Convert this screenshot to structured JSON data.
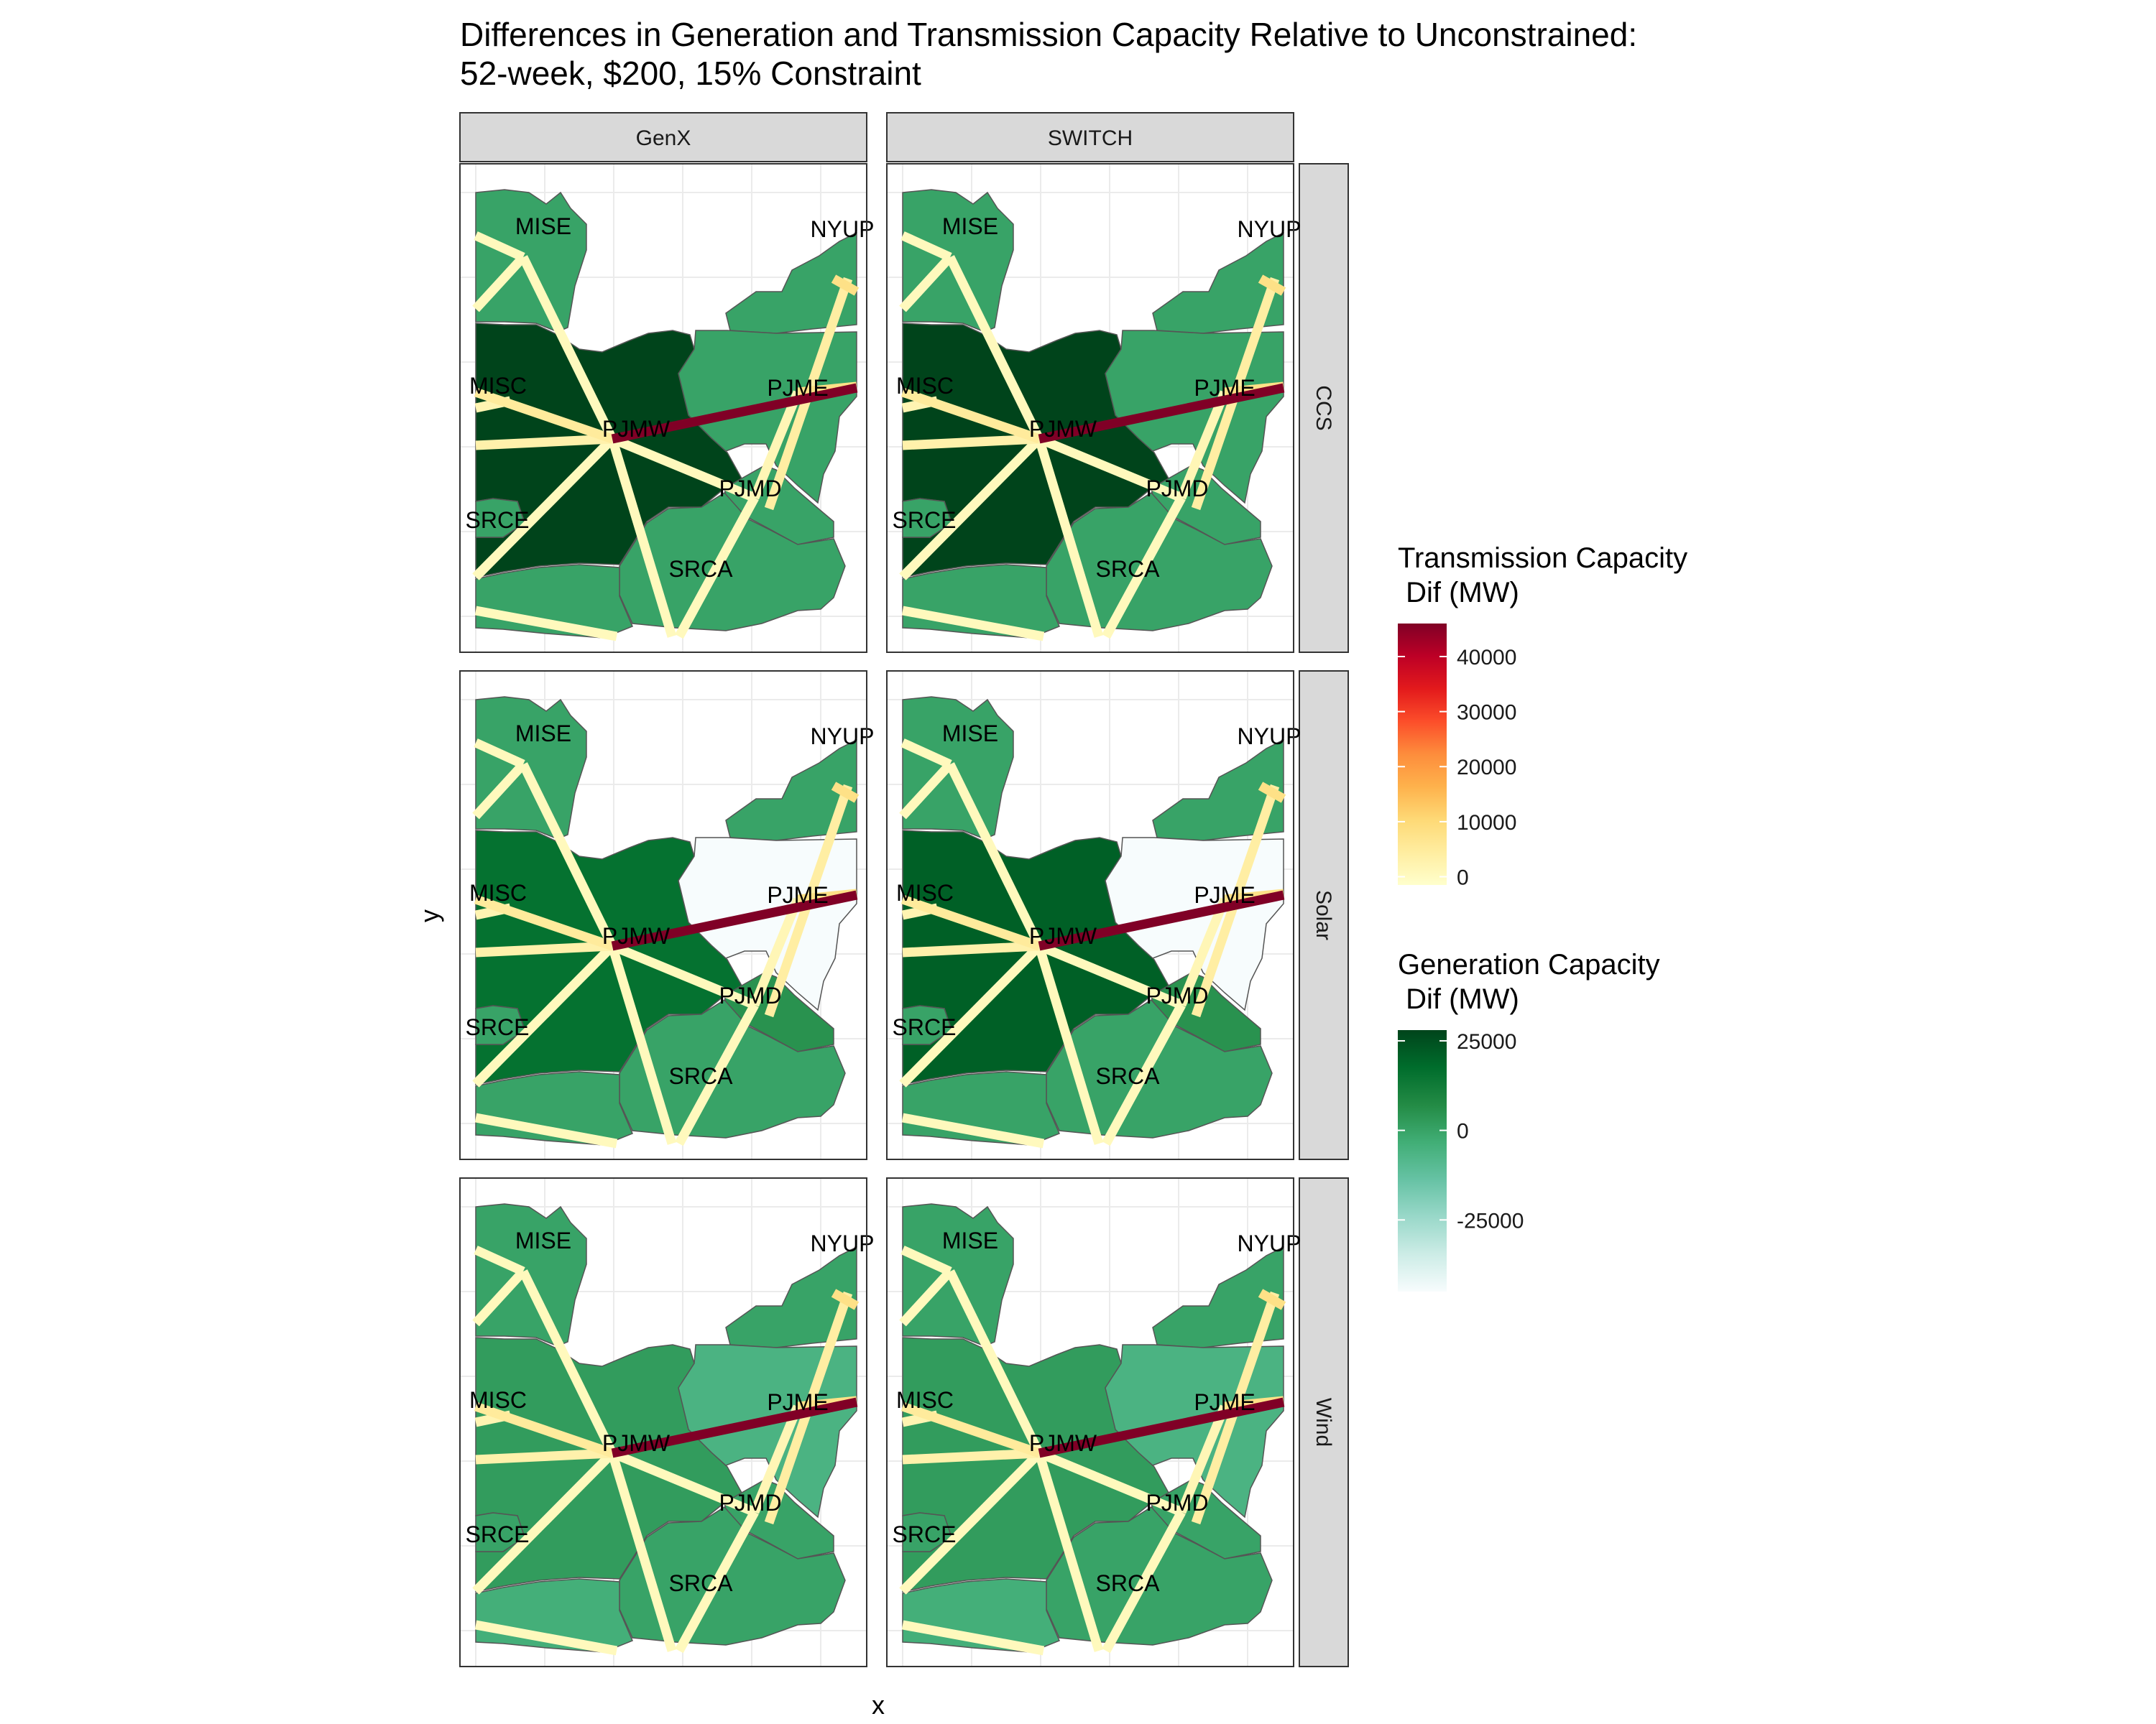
{
  "title_line1": "Differences in Generation and Transmission Capacity Relative to Unconstrained:",
  "title_line2": "52-week, $200, 15% Constraint",
  "x_label": "x",
  "y_label": "y",
  "columns": [
    "GenX",
    "SWITCH"
  ],
  "rows": [
    "CCS",
    "Solar",
    "Wind"
  ],
  "nodes": [
    {
      "id": "MISE",
      "label": "MISE"
    },
    {
      "id": "NYUP",
      "label": "NYUP"
    },
    {
      "id": "MISC",
      "label": "MISC"
    },
    {
      "id": "PJMW",
      "label": "PJMW"
    },
    {
      "id": "PJME",
      "label": "PJME"
    },
    {
      "id": "SRCE",
      "label": "SRCE"
    },
    {
      "id": "PJMD",
      "label": "PJMD"
    },
    {
      "id": "SRCA",
      "label": "SRCA"
    }
  ],
  "transmission": [
    {
      "from": "PJMW",
      "to": "PJME",
      "dif_mw": 46000
    },
    {
      "from": "PJMW",
      "to": "MISC",
      "dif_mw": 5000
    },
    {
      "from": "PJMW",
      "to": "MISE",
      "dif_mw": 500
    },
    {
      "from": "PJMW",
      "to": "SRCE",
      "dif_mw": 500
    },
    {
      "from": "PJMW",
      "to": "SRCA",
      "dif_mw": 500
    },
    {
      "from": "PJMW",
      "to": "PJMD",
      "dif_mw": 500
    },
    {
      "from": "PJMW",
      "to": "west-edge",
      "dif_mw": 3000
    },
    {
      "from": "PJME",
      "to": "NYUP",
      "dif_mw": 4000
    },
    {
      "from": "PJME",
      "to": "PJMD",
      "dif_mw": 1500
    },
    {
      "from": "PJME",
      "to": "east-edge",
      "dif_mw": 8000
    },
    {
      "from": "NYUP",
      "to": "east-edge",
      "dif_mw": 8000
    },
    {
      "from": "MISE",
      "to": "west-edge-upper",
      "dif_mw": 500
    },
    {
      "from": "MISE",
      "to": "west-edge-top",
      "dif_mw": 500
    },
    {
      "from": "PJMD",
      "to": "SRCA",
      "dif_mw": 500
    },
    {
      "from": "SRCA",
      "to": "south-edge",
      "dif_mw": 500
    },
    {
      "from": "SRCE",
      "to": "south-west-edge",
      "dif_mw": 500
    },
    {
      "from": "SRCE",
      "to": "south-edge",
      "dif_mw": 500
    },
    {
      "from": "MISC",
      "to": "west-edge-mid",
      "dif_mw": 2000
    }
  ],
  "generation_dif_mw": {
    "CCS": {
      "GenX": {
        "PJMW": 28000,
        "PJME": 0,
        "NYUP": 0,
        "PJMD": 0,
        "SRCA": 0,
        "MISE": 0,
        "MISC": 0,
        "SRCE": 0
      },
      "SWITCH": {
        "PJMW": 28000,
        "PJME": 0,
        "NYUP": 0,
        "PJMD": 0,
        "SRCA": 0,
        "MISE": 0,
        "MISC": 0,
        "SRCE": 0
      }
    },
    "Solar": {
      "GenX": {
        "PJMW": 16000,
        "PJME": -45000,
        "NYUP": 0,
        "PJMD": 5000,
        "SRCA": 0,
        "MISE": 0,
        "MISC": 0,
        "SRCE": 0
      },
      "SWITCH": {
        "PJMW": 21000,
        "PJME": -45000,
        "NYUP": 0,
        "PJMD": 5000,
        "SRCA": 0,
        "MISE": 0,
        "MISC": 0,
        "SRCE": 0
      }
    },
    "Wind": {
      "GenX": {
        "PJMW": 2000,
        "PJME": -6000,
        "NYUP": 0,
        "PJMD": 0,
        "SRCA": 0,
        "MISE": 0,
        "MISC": 0,
        "SRCE": -4000
      },
      "SWITCH": {
        "PJMW": 2000,
        "PJME": -6000,
        "NYUP": 0,
        "PJMD": 0,
        "SRCA": 0,
        "MISE": 0,
        "MISC": 0,
        "SRCE": -4000
      }
    }
  },
  "legend_transmission": {
    "title_line1": "Transmission Capacity",
    "title_line2": " Dif (MW)",
    "ticks": [
      "40000",
      "30000",
      "20000",
      "10000",
      "0"
    ],
    "colors": [
      "#ffffcc",
      "#ffeda0",
      "#fed976",
      "#feb24c",
      "#fd8d3c",
      "#fc4e2a",
      "#e31a1c",
      "#bd0026",
      "#800026"
    ]
  },
  "legend_generation": {
    "title_line1": "Generation Capacity",
    "title_line2": " Dif (MW)",
    "ticks": [
      "25000",
      "0",
      "-25000"
    ],
    "colors": [
      "#00441b",
      "#006d2c",
      "#238b45",
      "#41ae76",
      "#66c2a4",
      "#99d8c9",
      "#ccece6",
      "#f7fcfd"
    ]
  },
  "colors": {
    "strip_fill": "#d9d9d9",
    "panel_border": "#333333",
    "grid": "#ebebeb",
    "region_border": "#555555"
  }
}
